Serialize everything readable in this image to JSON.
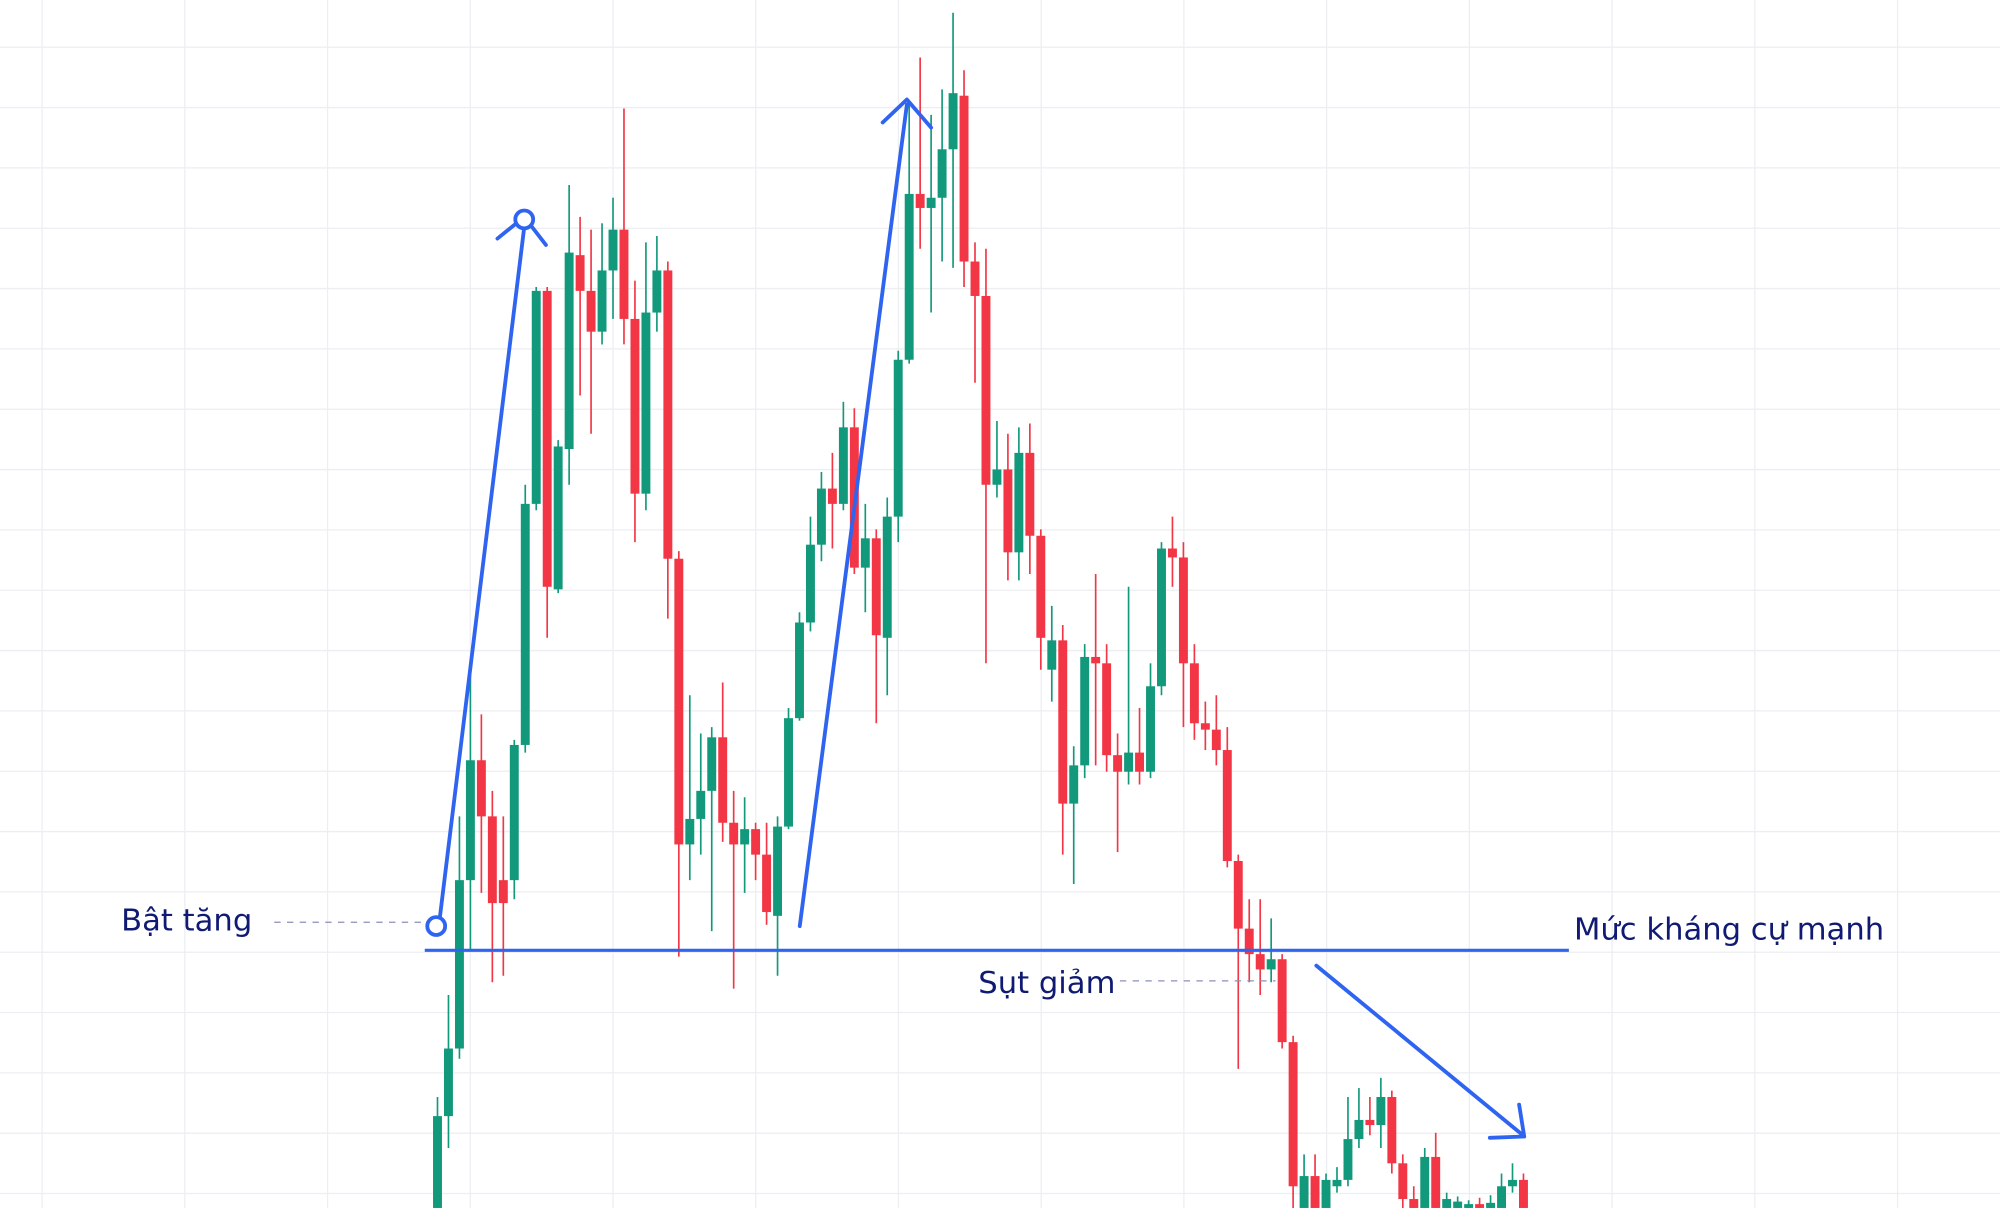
{
  "chart_data": {
    "type": "candlestick",
    "ylim": [
      0,
      947
    ],
    "grid": true,
    "up_color": "#12997c",
    "down_color": "#f23645",
    "open": [
      0,
      72,
      125,
      257,
      351,
      307,
      257,
      257,
      363,
      552,
      719,
      485,
      595,
      747,
      719,
      687,
      735,
      767,
      697,
      560,
      702,
      735,
      509,
      285,
      305,
      327,
      369,
      302,
      285,
      297,
      277,
      229,
      299,
      384,
      459,
      520,
      564,
      552,
      612,
      502,
      525,
      447,
      542,
      665,
      795,
      784,
      792,
      830,
      872,
      742,
      715,
      567,
      579,
      514,
      592,
      527,
      422,
      445,
      317,
      347,
      432,
      427,
      355,
      342,
      357,
      342,
      409,
      517,
      510,
      427,
      380,
      375,
      359,
      272,
      219,
      199,
      187,
      195,
      130,
      0,
      25,
      0,
      17,
      22,
      54,
      69,
      65,
      87,
      35,
      7,
      0,
      40,
      0,
      0,
      0,
      3,
      0,
      0,
      17,
      22
    ],
    "close": [
      72,
      125,
      257,
      351,
      307,
      239,
      239,
      363,
      552,
      719,
      487,
      597,
      749,
      719,
      687,
      735,
      767,
      697,
      560,
      702,
      735,
      509,
      285,
      305,
      327,
      369,
      302,
      285,
      297,
      277,
      232,
      299,
      384,
      459,
      520,
      564,
      552,
      612,
      502,
      525,
      449,
      542,
      665,
      795,
      784,
      792,
      830,
      874,
      742,
      715,
      567,
      579,
      514,
      592,
      527,
      447,
      445,
      317,
      347,
      432,
      427,
      355,
      342,
      357,
      342,
      409,
      517,
      510,
      427,
      380,
      375,
      359,
      272,
      219,
      199,
      187,
      195,
      130,
      17,
      25,
      0,
      22,
      22,
      54,
      69,
      65,
      87,
      35,
      7,
      0,
      40,
      0,
      7,
      5,
      3,
      0,
      4,
      17,
      22,
      0
    ],
    "high": [
      87,
      167,
      307,
      427,
      387,
      327,
      307,
      367,
      567,
      722,
      722,
      602,
      802,
      777,
      767,
      772,
      792,
      862,
      727,
      757,
      762,
      742,
      515,
      402,
      372,
      377,
      412,
      327,
      322,
      302,
      302,
      307,
      392,
      467,
      542,
      577,
      592,
      632,
      627,
      552,
      532,
      557,
      672,
      867,
      902,
      857,
      877,
      937,
      892,
      757,
      752,
      617,
      607,
      612,
      615,
      532,
      472,
      457,
      362,
      442,
      497,
      442,
      372,
      487,
      392,
      427,
      522,
      542,
      522,
      442,
      397,
      402,
      377,
      277,
      242,
      242,
      227,
      199,
      135,
      42,
      42,
      27,
      32,
      87,
      94,
      87,
      102,
      92,
      42,
      17,
      47,
      59,
      12,
      9,
      6,
      8,
      10,
      27,
      35,
      27
    ],
    "low": [
      0,
      47,
      117,
      202,
      247,
      177,
      182,
      242,
      357,
      547,
      447,
      482,
      567,
      637,
      607,
      677,
      697,
      677,
      522,
      547,
      687,
      462,
      197,
      257,
      277,
      217,
      287,
      172,
      247,
      257,
      222,
      182,
      297,
      382,
      452,
      507,
      517,
      547,
      497,
      467,
      380,
      402,
      522,
      662,
      752,
      702,
      742,
      737,
      722,
      647,
      427,
      557,
      492,
      492,
      497,
      422,
      397,
      277,
      254,
      337,
      347,
      342,
      279,
      332,
      332,
      337,
      402,
      487,
      377,
      367,
      359,
      347,
      267,
      109,
      177,
      167,
      177,
      125,
      0,
      0,
      0,
      0,
      12,
      17,
      47,
      57,
      47,
      27,
      0,
      0,
      0,
      0,
      0,
      0,
      0,
      0,
      0,
      0,
      12,
      0
    ],
    "resistance": 202,
    "annotations": {
      "bounce": "Bật tăng",
      "resistance_label": "Mức kháng cự mạnh",
      "drop": "Sụt giảm"
    }
  }
}
